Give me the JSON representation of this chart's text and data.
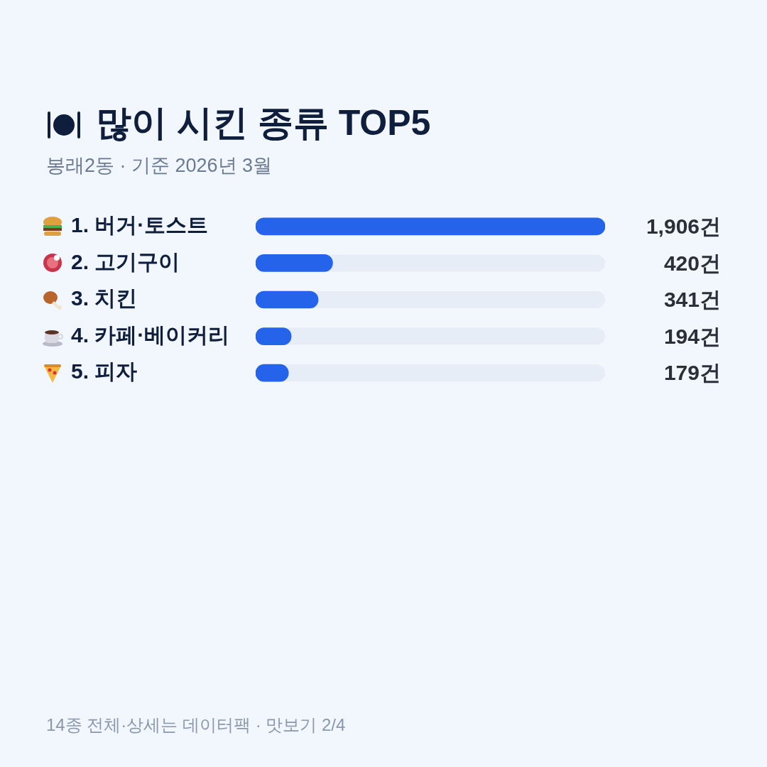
{
  "chart_data": {
    "type": "bar",
    "orientation": "horizontal",
    "title": "많이 시킨 종류 TOP5",
    "subtitle": "봉래2동 · 기준 2026년 3월",
    "categories": [
      "1. 버거·토스트",
      "2. 고기구이",
      "3. 치킨",
      "4. 카페·베이커리",
      "5. 피자"
    ],
    "values": [
      1906,
      420,
      341,
      194,
      179
    ],
    "value_labels": [
      "1,906건",
      "420건",
      "341건",
      "194건",
      "179건"
    ],
    "color": "#2563eb",
    "xlim": [
      0,
      1906
    ],
    "annotations": [
      "14종 전체·상세는 데이터팩 · 맛보기 2/4"
    ]
  }
}
